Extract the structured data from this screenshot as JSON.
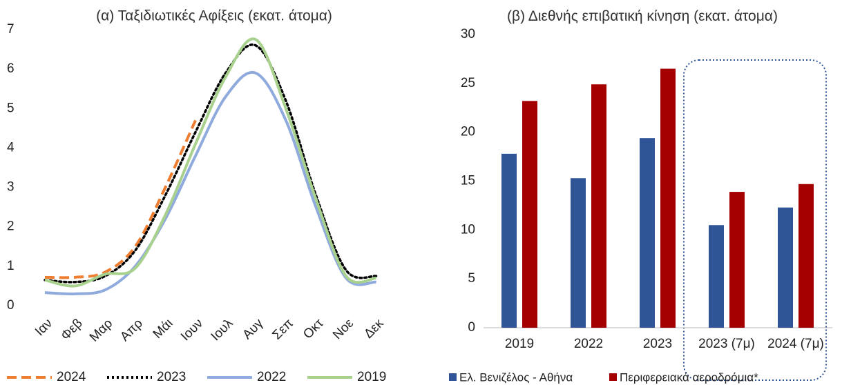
{
  "chart_data": [
    {
      "type": "line",
      "title": "(α) Ταξιδιωτικές Αφίξεις (εκατ. άτομα)",
      "categories": [
        "Ιαν",
        "Φεβ",
        "Μαρ",
        "Απρ",
        "Μάι",
        "Ιουν",
        "Ιουλ",
        "Αυγ",
        "Σεπ",
        "Οκτ",
        "Νοε",
        "Δεκ"
      ],
      "series": [
        {
          "name": "2024",
          "color": "#ed7d31",
          "dash": "dashed",
          "values": [
            0.72,
            0.72,
            0.85,
            1.5,
            3.0,
            4.7,
            null,
            null,
            null,
            null,
            null,
            null
          ]
        },
        {
          "name": "2023",
          "color": "#000000",
          "dash": "dotted",
          "values": [
            0.65,
            0.6,
            0.75,
            1.4,
            2.8,
            4.4,
            5.9,
            6.6,
            5.2,
            2.8,
            0.9,
            0.75
          ]
        },
        {
          "name": "2022",
          "color": "#8faadc",
          "dash": "solid",
          "values": [
            0.33,
            0.3,
            0.4,
            1.0,
            2.2,
            3.8,
            5.3,
            5.9,
            4.7,
            2.5,
            0.7,
            0.6
          ]
        },
        {
          "name": "2019",
          "color": "#a9d18e",
          "dash": "solid",
          "values": [
            0.65,
            0.5,
            0.8,
            0.95,
            2.3,
            4.1,
            5.8,
            6.75,
            5.0,
            2.7,
            0.75,
            0.7
          ]
        }
      ],
      "ylim": [
        0,
        7
      ],
      "yticks": [
        0,
        1,
        2,
        3,
        4,
        5,
        6,
        7
      ],
      "legend": "bottom"
    },
    {
      "type": "bar",
      "title": "(β) Διεθνής επιβατική κίνηση (εκατ. άτομα)",
      "categories": [
        "2019",
        "2022",
        "2023",
        "2023 (7μ)",
        "2024 (7μ)"
      ],
      "series": [
        {
          "name": "Ελ. Βενιζέλος - Αθήνα",
          "color": "#2f5597",
          "values": [
            17.8,
            15.3,
            19.4,
            10.5,
            12.3
          ]
        },
        {
          "name": "Περιφερειακά αεροδρόμια*",
          "color": "#a50000",
          "values": [
            23.2,
            24.9,
            26.5,
            13.9,
            14.7
          ]
        }
      ],
      "ylim": [
        0,
        30
      ],
      "yticks": [
        0,
        5,
        10,
        15,
        20,
        25,
        30
      ],
      "legend": "bottom"
    }
  ]
}
